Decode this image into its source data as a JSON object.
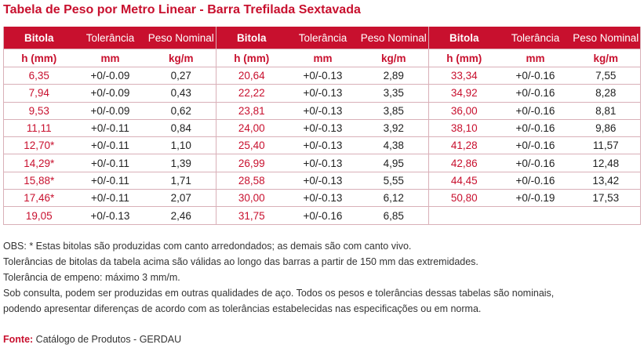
{
  "title": "Tabela de Peso por Metro Linear - Barra Trefilada Sextavada",
  "headers": {
    "col1": "Bitola",
    "col2": "Tolerância",
    "col3": "Peso Nominal",
    "unit1": "h (mm)",
    "unit2": "mm",
    "unit3": "kg/m"
  },
  "groups": [
    {
      "rows": [
        {
          "bitola": "6,35",
          "tol": "+0/-0.09",
          "peso": "0,27"
        },
        {
          "bitola": "7,94",
          "tol": "+0/-0.09",
          "peso": "0,43"
        },
        {
          "bitola": "9,53",
          "tol": "+0/-0.09",
          "peso": "0,62"
        },
        {
          "bitola": "11,11",
          "tol": "+0/-0.11",
          "peso": "0,84"
        },
        {
          "bitola": "12,70*",
          "tol": "+0/-0.11",
          "peso": "1,10"
        },
        {
          "bitola": "14,29*",
          "tol": "+0/-0.11",
          "peso": "1,39"
        },
        {
          "bitola": "15,88*",
          "tol": "+0/-0.11",
          "peso": "1,71"
        },
        {
          "bitola": "17,46*",
          "tol": "+0/-0.11",
          "peso": "2,07"
        },
        {
          "bitola": "19,05",
          "tol": "+0/-0.13",
          "peso": "2,46"
        }
      ]
    },
    {
      "rows": [
        {
          "bitola": "20,64",
          "tol": "+0/-0.13",
          "peso": "2,89"
        },
        {
          "bitola": "22,22",
          "tol": "+0/-0.13",
          "peso": "3,35"
        },
        {
          "bitola": "23,81",
          "tol": "+0/-0.13",
          "peso": "3,85"
        },
        {
          "bitola": "24,00",
          "tol": "+0/-0.13",
          "peso": "3,92"
        },
        {
          "bitola": "25,40",
          "tol": "+0/-0.13",
          "peso": "4,38"
        },
        {
          "bitola": "26,99",
          "tol": "+0/-0.13",
          "peso": "4,95"
        },
        {
          "bitola": "28,58",
          "tol": "+0/-0.13",
          "peso": "5,55"
        },
        {
          "bitola": "30,00",
          "tol": "+0/-0.13",
          "peso": "6,12"
        },
        {
          "bitola": "31,75",
          "tol": "+0/-0.16",
          "peso": "6,85"
        }
      ]
    },
    {
      "rows": [
        {
          "bitola": "33,34",
          "tol": "+0/-0.16",
          "peso": "7,55"
        },
        {
          "bitola": "34,92",
          "tol": "+0/-0.16",
          "peso": "8,28"
        },
        {
          "bitola": "36,00",
          "tol": "+0/-0.16",
          "peso": "8,81"
        },
        {
          "bitola": "38,10",
          "tol": "+0/-0.16",
          "peso": "9,86"
        },
        {
          "bitola": "41,28",
          "tol": "+0/-0.16",
          "peso": "11,57"
        },
        {
          "bitola": "42,86",
          "tol": "+0/-0.16",
          "peso": "12,48"
        },
        {
          "bitola": "44,45",
          "tol": "+0/-0.16",
          "peso": "13,42"
        },
        {
          "bitola": "50,80",
          "tol": "+0/-0.19",
          "peso": "17,53"
        },
        {
          "bitola": "",
          "tol": "",
          "peso": ""
        }
      ]
    }
  ],
  "notes": [
    "OBS: * Estas bitolas são produzidas com canto arredondados; as demais são com canto vivo.",
    "Tolerâncias de bitolas da tabela acima são válidas ao longo das barras a partir de 150 mm das extremidades.",
    "Tolerância de empeno: máximo 3 mm/m.",
    "Sob consulta, podem ser produzidas em outras qualidades de aço. Todos os pesos e tolerâncias dessas tabelas são nominais,",
    "podendo apresentar diferenças de acordo com as tolerâncias estabelecidas nas especificações ou em norma."
  ],
  "source": {
    "label": "Fonte:",
    "text": "Catálogo de Produtos - GERDAU"
  },
  "colors": {
    "accent": "#c8102e",
    "border": "#d9b0b8"
  }
}
